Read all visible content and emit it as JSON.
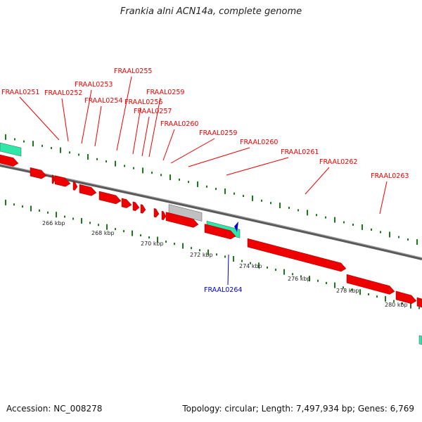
{
  "title": "Frankia alni ACN14a, complete genome",
  "footer": {
    "accession": "Accession: NC_008278",
    "summary": "Topology: circular; Length: 7,497,934 bp; Genes: 6,769"
  },
  "colors": {
    "forward_gene": "#ee0000",
    "rna": "#2de8a8",
    "pseudo": "#c0c0c0",
    "reverse_marker": "#0000cc",
    "tick": "#1a7a1a",
    "backbone": "#777777"
  },
  "tick_labels": [
    "266 kbp",
    "268 kbp",
    "270 kbp",
    "272 kbp",
    "274 kbp",
    "276 kbp",
    "278 kbp",
    "280 kbp"
  ],
  "gene_labels": [
    {
      "text": "FRAAL0251",
      "strand": "forward"
    },
    {
      "text": "FRAAL0252",
      "strand": "forward"
    },
    {
      "text": "FRAAL0253",
      "strand": "forward"
    },
    {
      "text": "FRAAL0254",
      "strand": "forward"
    },
    {
      "text": "FRAAL0255",
      "strand": "forward"
    },
    {
      "text": "FRAAL0256",
      "strand": "forward"
    },
    {
      "text": "FRAAL0257",
      "strand": "forward"
    },
    {
      "text": "FRAAL0259",
      "strand": "forward"
    },
    {
      "text": "FRAAL0260",
      "strand": "forward"
    },
    {
      "text": "FRAAL0259",
      "strand": "forward"
    },
    {
      "text": "FRAAL0260",
      "strand": "forward"
    },
    {
      "text": "FRAAL0261",
      "strand": "forward"
    },
    {
      "text": "FRAAL0262",
      "strand": "forward"
    },
    {
      "text": "FRAAL0263",
      "strand": "forward"
    },
    {
      "text": "FRAAL0264",
      "strand": "reverse"
    }
  ]
}
